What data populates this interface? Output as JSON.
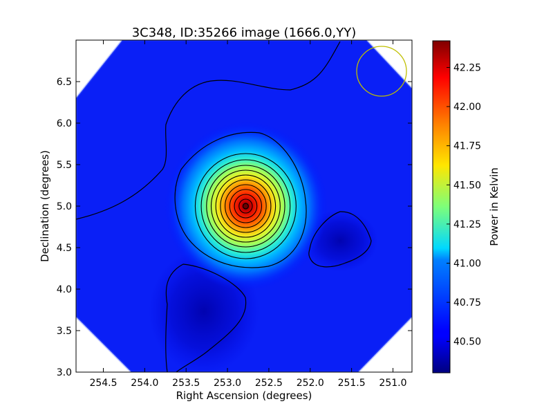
{
  "chart_data": {
    "type": "heatmap",
    "title": "3C348, ID:35266 image (1666.0,YY)",
    "xlabel": "Right Ascension (degrees)",
    "ylabel": "Declination (degrees)",
    "xlim": [
      254.83,
      250.77
    ],
    "ylim": [
      3.0,
      7.0
    ],
    "x_ticks": [
      254.5,
      254.0,
      253.5,
      253.0,
      252.5,
      252.0,
      251.5,
      251.0
    ],
    "x_tick_labels": [
      "254.5",
      "254.0",
      "253.5",
      "253.0",
      "252.5",
      "252.0",
      "251.5",
      "251.0"
    ],
    "y_ticks": [
      3.0,
      3.5,
      4.0,
      4.5,
      5.0,
      5.5,
      6.0,
      6.5
    ],
    "y_tick_labels": [
      "3.0",
      "3.5",
      "4.0",
      "4.5",
      "5.0",
      "5.5",
      "6.0",
      "6.5"
    ],
    "colorbar": {
      "label": "Power in Kelvin",
      "range": [
        40.3,
        42.42
      ],
      "ticks": [
        40.5,
        40.75,
        41.0,
        41.25,
        41.5,
        41.75,
        42.0,
        42.25
      ],
      "tick_labels": [
        "40.50",
        "40.75",
        "41.00",
        "41.25",
        "41.50",
        "41.75",
        "42.00",
        "42.25"
      ],
      "colormap": "jet"
    },
    "source": {
      "ra": 252.78,
      "dec": 5.0,
      "peak": 42.42
    },
    "beam_circle": {
      "ra": 251.13,
      "dec": 6.64,
      "radius_deg": 0.3,
      "color": "#bfbf00"
    },
    "contour_color": "#000000",
    "grid": false
  }
}
